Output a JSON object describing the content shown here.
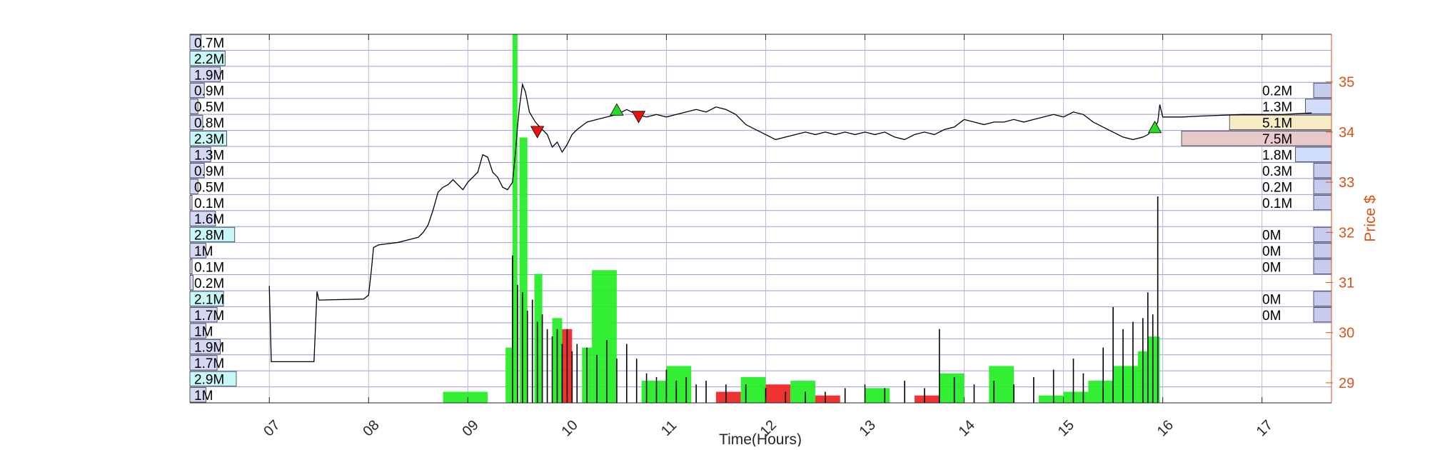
{
  "chart_data": {
    "type": "line",
    "title": "",
    "xlabel": "Time(Hours)",
    "ylabel": "Price $",
    "x_ticks": [
      "07",
      "08",
      "09",
      "10",
      "11",
      "12",
      "13",
      "14",
      "15",
      "16",
      "17"
    ],
    "y_ticks": [
      29,
      30,
      31,
      32,
      33,
      34,
      35
    ],
    "xlim": [
      6.2,
      17.7
    ],
    "ylim": [
      28.6,
      35.95
    ],
    "y_axis_side": "right",
    "grid": true,
    "price_series": [
      [
        7.0,
        30.93
      ],
      [
        7.02,
        29.42
      ],
      [
        7.45,
        29.42
      ],
      [
        7.48,
        30.82
      ],
      [
        7.5,
        30.65
      ],
      [
        7.95,
        30.67
      ],
      [
        8.0,
        30.75
      ],
      [
        8.03,
        31.28
      ],
      [
        8.05,
        31.7
      ],
      [
        8.1,
        31.75
      ],
      [
        8.3,
        31.8
      ],
      [
        8.4,
        31.85
      ],
      [
        8.5,
        31.9
      ],
      [
        8.55,
        32.0
      ],
      [
        8.6,
        32.15
      ],
      [
        8.65,
        32.45
      ],
      [
        8.7,
        32.8
      ],
      [
        8.75,
        32.9
      ],
      [
        8.8,
        32.95
      ],
      [
        8.85,
        33.05
      ],
      [
        8.9,
        32.95
      ],
      [
        8.95,
        32.85
      ],
      [
        9.0,
        33.0
      ],
      [
        9.05,
        33.1
      ],
      [
        9.1,
        33.2
      ],
      [
        9.15,
        33.55
      ],
      [
        9.2,
        33.5
      ],
      [
        9.25,
        33.2
      ],
      [
        9.3,
        33.1
      ],
      [
        9.35,
        32.9
      ],
      [
        9.4,
        32.85
      ],
      [
        9.45,
        33.0
      ],
      [
        9.48,
        33.6
      ],
      [
        9.5,
        34.1
      ],
      [
        9.52,
        34.5
      ],
      [
        9.55,
        34.95
      ],
      [
        9.58,
        34.8
      ],
      [
        9.62,
        34.4
      ],
      [
        9.68,
        34.2
      ],
      [
        9.75,
        34.05
      ],
      [
        9.8,
        33.95
      ],
      [
        9.85,
        33.7
      ],
      [
        9.9,
        33.8
      ],
      [
        9.95,
        33.6
      ],
      [
        10.0,
        33.75
      ],
      [
        10.05,
        33.95
      ],
      [
        10.1,
        34.05
      ],
      [
        10.2,
        34.2
      ],
      [
        10.3,
        34.25
      ],
      [
        10.4,
        34.3
      ],
      [
        10.5,
        34.35
      ],
      [
        10.6,
        34.45
      ],
      [
        10.7,
        34.35
      ],
      [
        10.8,
        34.3
      ],
      [
        10.9,
        34.35
      ],
      [
        11.0,
        34.3
      ],
      [
        11.1,
        34.35
      ],
      [
        11.2,
        34.4
      ],
      [
        11.3,
        34.45
      ],
      [
        11.4,
        34.4
      ],
      [
        11.5,
        34.5
      ],
      [
        11.6,
        34.45
      ],
      [
        11.7,
        34.35
      ],
      [
        11.8,
        34.15
      ],
      [
        11.9,
        34.05
      ],
      [
        12.0,
        33.95
      ],
      [
        12.1,
        33.85
      ],
      [
        12.2,
        33.9
      ],
      [
        12.3,
        33.95
      ],
      [
        12.4,
        34.0
      ],
      [
        12.5,
        33.95
      ],
      [
        12.6,
        34.0
      ],
      [
        12.7,
        33.95
      ],
      [
        12.8,
        34.0
      ],
      [
        12.9,
        33.95
      ],
      [
        13.0,
        34.0
      ],
      [
        13.1,
        33.95
      ],
      [
        13.2,
        34.0
      ],
      [
        13.3,
        33.9
      ],
      [
        13.4,
        33.85
      ],
      [
        13.5,
        33.95
      ],
      [
        13.6,
        34.0
      ],
      [
        13.7,
        33.95
      ],
      [
        13.8,
        34.05
      ],
      [
        13.9,
        34.1
      ],
      [
        14.0,
        34.25
      ],
      [
        14.1,
        34.2
      ],
      [
        14.2,
        34.15
      ],
      [
        14.3,
        34.2
      ],
      [
        14.4,
        34.2
      ],
      [
        14.5,
        34.25
      ],
      [
        14.6,
        34.2
      ],
      [
        14.7,
        34.25
      ],
      [
        14.8,
        34.3
      ],
      [
        14.9,
        34.35
      ],
      [
        15.0,
        34.3
      ],
      [
        15.1,
        34.4
      ],
      [
        15.2,
        34.35
      ],
      [
        15.3,
        34.2
      ],
      [
        15.4,
        34.1
      ],
      [
        15.5,
        34.0
      ],
      [
        15.6,
        33.9
      ],
      [
        15.7,
        33.85
      ],
      [
        15.8,
        33.9
      ],
      [
        15.85,
        33.95
      ],
      [
        15.9,
        34.05
      ],
      [
        15.95,
        34.2
      ],
      [
        15.97,
        34.55
      ],
      [
        16.0,
        34.3
      ],
      [
        16.2,
        34.3
      ],
      [
        16.4,
        34.32
      ],
      [
        16.8,
        34.35
      ],
      [
        17.2,
        34.35
      ],
      [
        17.5,
        34.38
      ]
    ],
    "markers": [
      {
        "x": 9.7,
        "y": 34.0,
        "kind": "sell"
      },
      {
        "x": 10.5,
        "y": 34.45,
        "kind": "buy"
      },
      {
        "x": 10.72,
        "y": 34.3,
        "kind": "sell"
      },
      {
        "x": 15.92,
        "y": 34.1,
        "kind": "buy"
      }
    ],
    "volume_profile_left": [
      {
        "label": "0.7M",
        "value": 0.7
      },
      {
        "label": "2.2M",
        "value": 2.2
      },
      {
        "label": "1.9M",
        "value": 1.9
      },
      {
        "label": "0.9M",
        "value": 0.9
      },
      {
        "label": "0.5M",
        "value": 0.5
      },
      {
        "label": "0.8M",
        "value": 0.8
      },
      {
        "label": "2.3M",
        "value": 2.3
      },
      {
        "label": "1.3M",
        "value": 1.3
      },
      {
        "label": "0.9M",
        "value": 0.9
      },
      {
        "label": "0.5M",
        "value": 0.5
      },
      {
        "label": "0.1M",
        "value": 0.1
      },
      {
        "label": "1.6M",
        "value": 1.6
      },
      {
        "label": "2.8M",
        "value": 2.8
      },
      {
        "label": "1M",
        "value": 1.0
      },
      {
        "label": "0.1M",
        "value": 0.1
      },
      {
        "label": "0.2M",
        "value": 0.2
      },
      {
        "label": "2.1M",
        "value": 2.1
      },
      {
        "label": "1.7M",
        "value": 1.7
      },
      {
        "label": "1M",
        "value": 1.0
      },
      {
        "label": "1.9M",
        "value": 1.9
      },
      {
        "label": "1.7M",
        "value": 1.7
      },
      {
        "label": "2.9M",
        "value": 2.9
      },
      {
        "label": "1M",
        "value": 1.0
      }
    ],
    "volume_profile_right": [
      {
        "row": 3,
        "label": "0.2M",
        "value": 0.2
      },
      {
        "row": 4,
        "label": "1.3M",
        "value": 1.3
      },
      {
        "row": 5,
        "label": "5.1M",
        "value": 5.1
      },
      {
        "row": 6,
        "label": "7.5M",
        "value": 7.5
      },
      {
        "row": 7,
        "label": "1.8M",
        "value": 1.8
      },
      {
        "row": 8,
        "label": "0.3M",
        "value": 0.3
      },
      {
        "row": 9,
        "label": "0.2M",
        "value": 0.2
      },
      {
        "row": 10,
        "label": "0.1M",
        "value": 0.1
      },
      {
        "row": 12,
        "label": "0M",
        "value": 0.0
      },
      {
        "row": 13,
        "label": "0M",
        "value": 0.0
      },
      {
        "row": 14,
        "label": "0M",
        "value": 0.0
      },
      {
        "row": 16,
        "label": "0M",
        "value": 0.0
      },
      {
        "row": 17,
        "label": "0M",
        "value": 0.0
      }
    ],
    "interval_volume": [
      {
        "x0": 8.75,
        "x1": 9.2,
        "value": 0.03,
        "side": "buy"
      },
      {
        "x0": 9.38,
        "x1": 9.45,
        "value": 0.15,
        "side": "buy"
      },
      {
        "x0": 9.45,
        "x1": 9.5,
        "value": 1.0,
        "side": "buy"
      },
      {
        "x0": 9.52,
        "x1": 9.6,
        "value": 0.72,
        "side": "buy"
      },
      {
        "x0": 9.67,
        "x1": 9.75,
        "value": 0.35,
        "side": "buy"
      },
      {
        "x0": 9.85,
        "x1": 9.95,
        "value": 0.23,
        "side": "buy"
      },
      {
        "x0": 9.95,
        "x1": 10.05,
        "value": 0.2,
        "side": "sell"
      },
      {
        "x0": 10.15,
        "x1": 10.25,
        "value": 0.15,
        "side": "buy"
      },
      {
        "x0": 10.25,
        "x1": 10.5,
        "value": 0.36,
        "side": "buy"
      },
      {
        "x0": 10.75,
        "x1": 11.0,
        "value": 0.06,
        "side": "buy"
      },
      {
        "x0": 11.0,
        "x1": 11.25,
        "value": 0.1,
        "side": "buy"
      },
      {
        "x0": 11.5,
        "x1": 11.75,
        "value": 0.03,
        "side": "sell"
      },
      {
        "x0": 11.75,
        "x1": 12.0,
        "value": 0.07,
        "side": "buy"
      },
      {
        "x0": 12.0,
        "x1": 12.25,
        "value": 0.05,
        "side": "sell"
      },
      {
        "x0": 12.25,
        "x1": 12.5,
        "value": 0.06,
        "side": "buy"
      },
      {
        "x0": 12.5,
        "x1": 12.75,
        "value": 0.02,
        "side": "sell"
      },
      {
        "x0": 13.0,
        "x1": 13.25,
        "value": 0.04,
        "side": "buy"
      },
      {
        "x0": 13.5,
        "x1": 13.75,
        "value": 0.02,
        "side": "sell"
      },
      {
        "x0": 13.75,
        "x1": 14.0,
        "value": 0.08,
        "side": "buy"
      },
      {
        "x0": 14.25,
        "x1": 14.5,
        "value": 0.1,
        "side": "buy"
      },
      {
        "x0": 14.75,
        "x1": 15.0,
        "value": 0.02,
        "side": "buy"
      },
      {
        "x0": 15.0,
        "x1": 15.25,
        "value": 0.03,
        "side": "buy"
      },
      {
        "x0": 15.25,
        "x1": 15.5,
        "value": 0.06,
        "side": "buy"
      },
      {
        "x0": 15.5,
        "x1": 15.75,
        "value": 0.1,
        "side": "buy"
      },
      {
        "x0": 15.75,
        "x1": 15.85,
        "value": 0.14,
        "side": "buy"
      },
      {
        "x0": 15.85,
        "x1": 15.97,
        "value": 0.18,
        "side": "buy"
      }
    ],
    "trade_volume_spikes": [
      [
        9.45,
        0.4
      ],
      [
        9.5,
        0.32
      ],
      [
        9.55,
        0.3
      ],
      [
        9.6,
        0.25
      ],
      [
        9.65,
        0.28
      ],
      [
        9.7,
        0.22
      ],
      [
        9.75,
        0.24
      ],
      [
        9.8,
        0.2
      ],
      [
        9.85,
        0.18
      ],
      [
        9.9,
        0.2
      ],
      [
        9.95,
        0.16
      ],
      [
        10.0,
        0.2
      ],
      [
        10.05,
        0.14
      ],
      [
        10.1,
        0.16
      ],
      [
        10.2,
        0.15
      ],
      [
        10.3,
        0.13
      ],
      [
        10.4,
        0.17
      ],
      [
        10.5,
        0.12
      ],
      [
        10.6,
        0.16
      ],
      [
        10.7,
        0.12
      ],
      [
        10.8,
        0.08
      ],
      [
        10.9,
        0.07
      ],
      [
        11.0,
        0.09
      ],
      [
        11.1,
        0.06
      ],
      [
        11.2,
        0.07
      ],
      [
        11.3,
        0.05
      ],
      [
        11.4,
        0.06
      ],
      [
        11.6,
        0.05
      ],
      [
        11.8,
        0.05
      ],
      [
        12.0,
        0.04
      ],
      [
        12.2,
        0.03
      ],
      [
        12.4,
        0.03
      ],
      [
        12.6,
        0.03
      ],
      [
        12.8,
        0.04
      ],
      [
        13.0,
        0.05
      ],
      [
        13.2,
        0.04
      ],
      [
        13.4,
        0.06
      ],
      [
        13.6,
        0.04
      ],
      [
        13.75,
        0.2
      ],
      [
        13.9,
        0.07
      ],
      [
        14.1,
        0.05
      ],
      [
        14.3,
        0.06
      ],
      [
        14.5,
        0.05
      ],
      [
        14.7,
        0.07
      ],
      [
        14.9,
        0.09
      ],
      [
        15.1,
        0.12
      ],
      [
        15.2,
        0.08
      ],
      [
        15.4,
        0.15
      ],
      [
        15.5,
        0.26
      ],
      [
        15.6,
        0.2
      ],
      [
        15.7,
        0.22
      ],
      [
        15.8,
        0.23
      ],
      [
        15.85,
        0.3
      ],
      [
        15.9,
        0.24
      ],
      [
        15.95,
        0.56
      ]
    ]
  }
}
